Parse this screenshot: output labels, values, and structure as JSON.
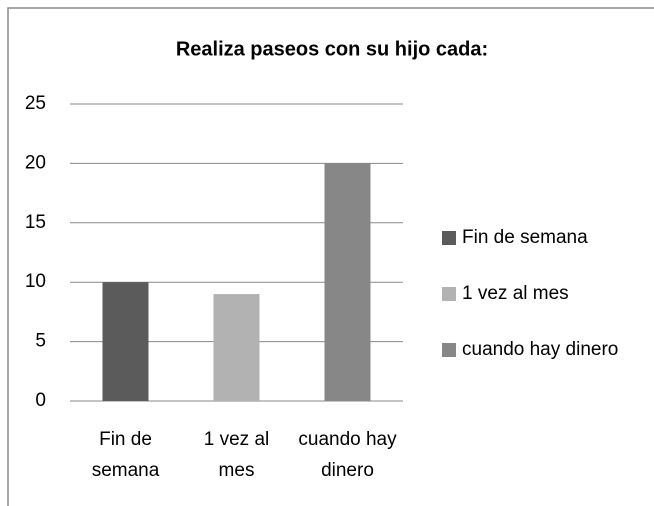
{
  "chart_data": {
    "type": "bar",
    "title": "Realiza paseos con su hijo cada:",
    "categories": [
      "Fin de semana",
      "1 vez al mes",
      "cuando hay dinero"
    ],
    "values": [
      10,
      9,
      20
    ],
    "colors": [
      "#5b5b5b",
      "#b2b2b2",
      "#878787"
    ],
    "ylim": [
      0,
      25
    ],
    "yticks": [
      0,
      5,
      10,
      15,
      20,
      25
    ],
    "grid": true,
    "legend": "right"
  }
}
